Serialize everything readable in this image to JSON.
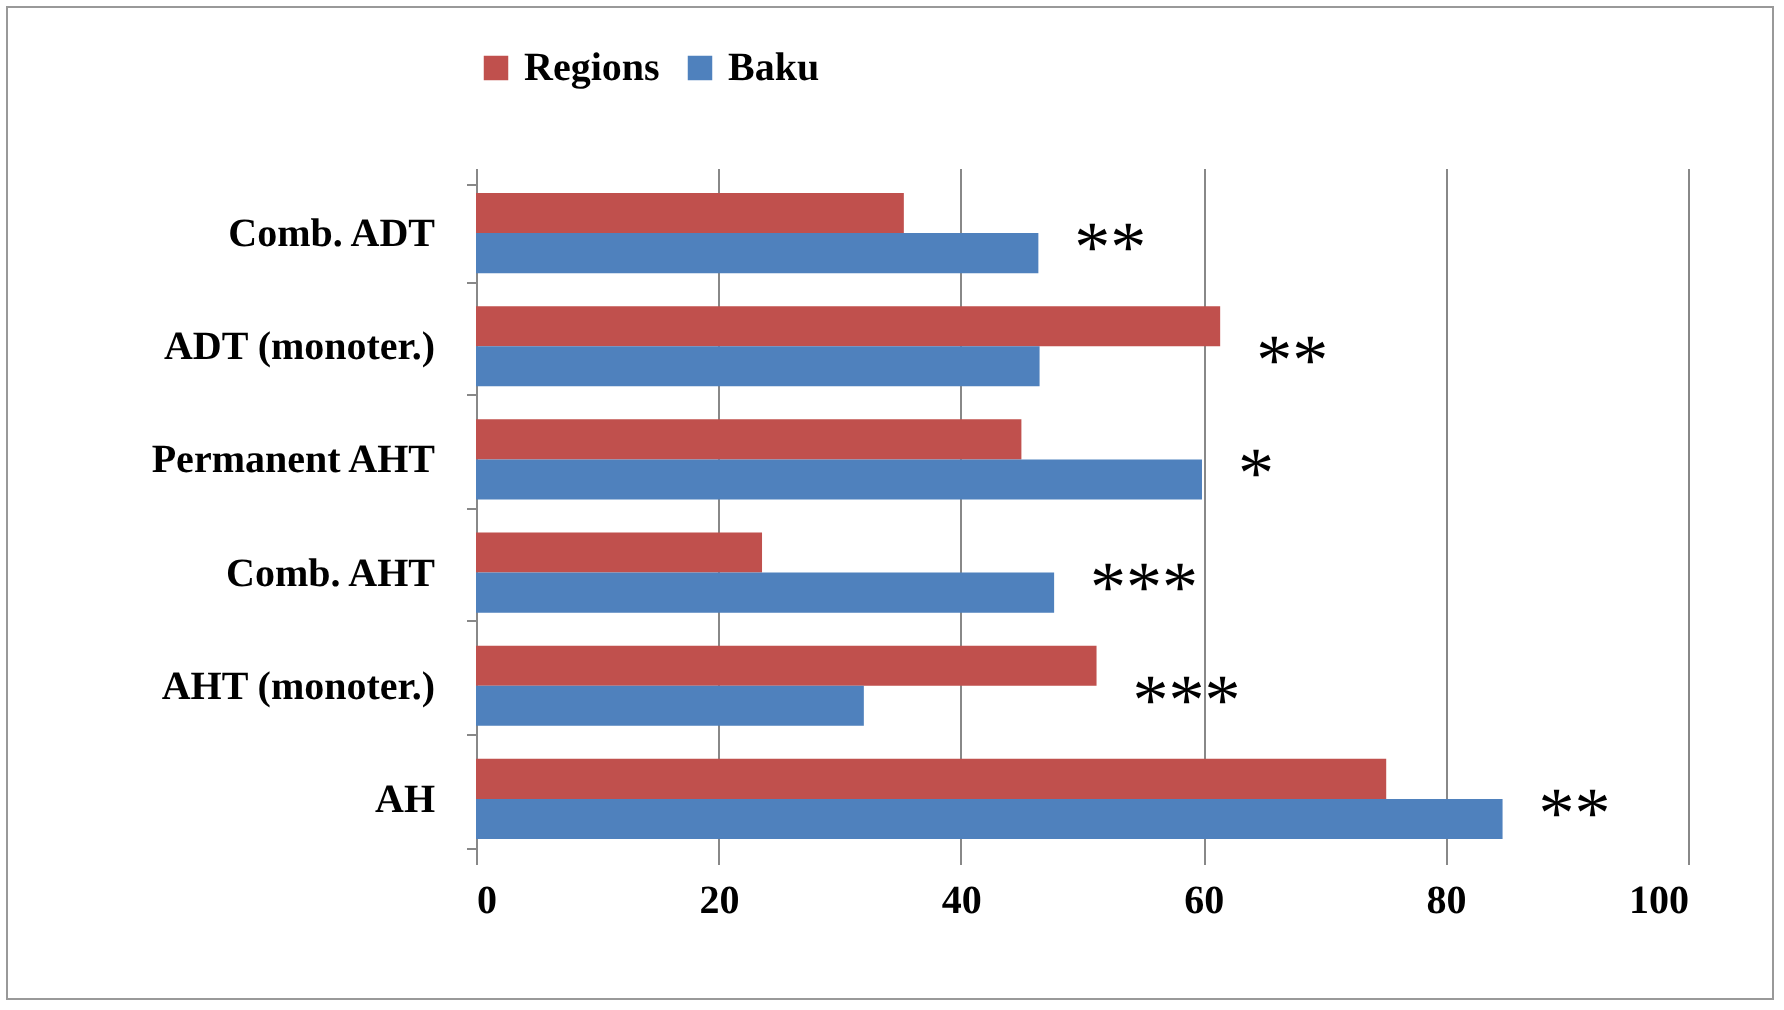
{
  "chart_data": {
    "type": "bar",
    "orientation": "horizontal",
    "categories": [
      "Comb. ADT",
      "ADT (monoter.)",
      "Permanent AHT",
      "Comb. AHT",
      "AHT (monoter.)",
      "AH"
    ],
    "series": [
      {
        "name": "Regions",
        "color": "#c0504d",
        "values": [
          35.3,
          61.4,
          45,
          23.6,
          51.2,
          75.1
        ]
      },
      {
        "name": "Baku",
        "color": "#4f81bd",
        "values": [
          46.4,
          46.5,
          59.9,
          47.7,
          32,
          84.7
        ]
      }
    ],
    "xlim": [
      0,
      100
    ],
    "xticks": [
      0,
      20,
      40,
      60,
      80,
      100
    ],
    "grid": "x",
    "legend": "top",
    "annotations": [
      "**",
      "**",
      "*",
      "***",
      "***",
      "**"
    ]
  }
}
